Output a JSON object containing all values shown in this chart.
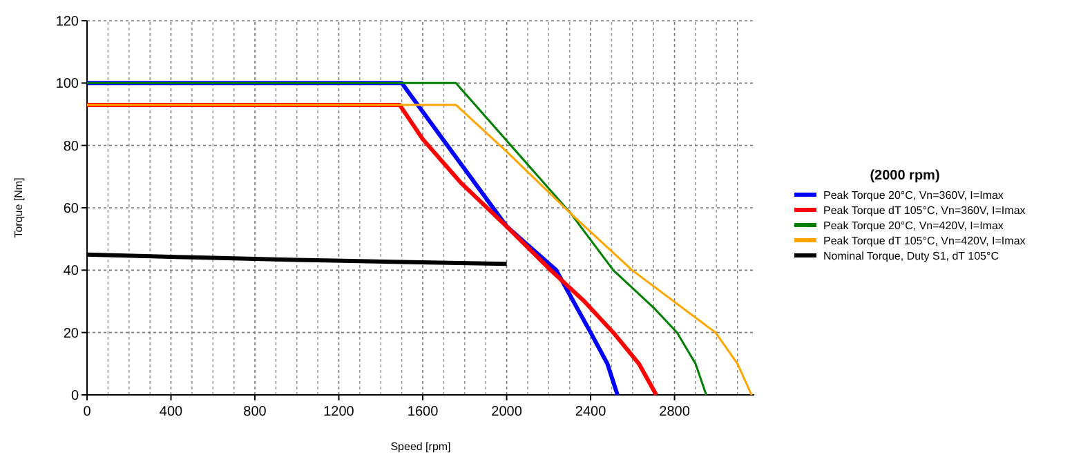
{
  "chart_data": {
    "type": "line",
    "xlabel": "Speed [rpm]",
    "ylabel": "Torque [Nm]",
    "legend_title": "(2000 rpm)",
    "legend": "right",
    "grid": true,
    "xlim": [
      0,
      3180
    ],
    "ylim": [
      0,
      120
    ],
    "xticks": [
      0,
      400,
      800,
      1200,
      1600,
      2000,
      2400,
      2800
    ],
    "yticks": [
      0,
      20,
      40,
      60,
      80,
      100,
      120
    ],
    "series": [
      {
        "name": "Peak Torque 20°C, Vn=360V, I=Imax",
        "color": "#0000ff",
        "x": [
          0,
          1500,
          1750,
          2000,
          2236,
          2400,
          2480,
          2528
        ],
        "values": [
          100,
          100,
          77,
          54,
          40,
          20,
          10,
          0
        ]
      },
      {
        "name": "Peak Torque dT 105°C, Vn=360V, I=Imax",
        "color": "#ff0000",
        "x": [
          0,
          1490,
          1600,
          1782,
          2000,
          2210,
          2370,
          2508,
          2630,
          2713
        ],
        "values": [
          93,
          93,
          82,
          68,
          54,
          40,
          30,
          20,
          10,
          0
        ]
      },
      {
        "name": "Peak Torque 20°C, Vn=420V, I=Imax",
        "color": "#008000",
        "x": [
          0,
          1758,
          2308,
          2508,
          2700,
          2812,
          2900,
          2951
        ],
        "values": [
          100,
          100,
          58,
          40,
          28,
          20,
          10,
          0
        ]
      },
      {
        "name": "Peak Torque dT 105°C, Vn=420V, I=Imax",
        "color": "#ffa500",
        "x": [
          0,
          1758,
          2000,
          2308,
          2598,
          2995,
          3100,
          3167
        ],
        "values": [
          93,
          93,
          78,
          58,
          40,
          20,
          10,
          0
        ]
      },
      {
        "name": "Nominal Torque, Duty S1, dT 105°C",
        "color": "#000000",
        "x": [
          0,
          500,
          1000,
          1500,
          2000
        ],
        "values": [
          45,
          44.1,
          43.3,
          42.6,
          42
        ]
      }
    ]
  }
}
